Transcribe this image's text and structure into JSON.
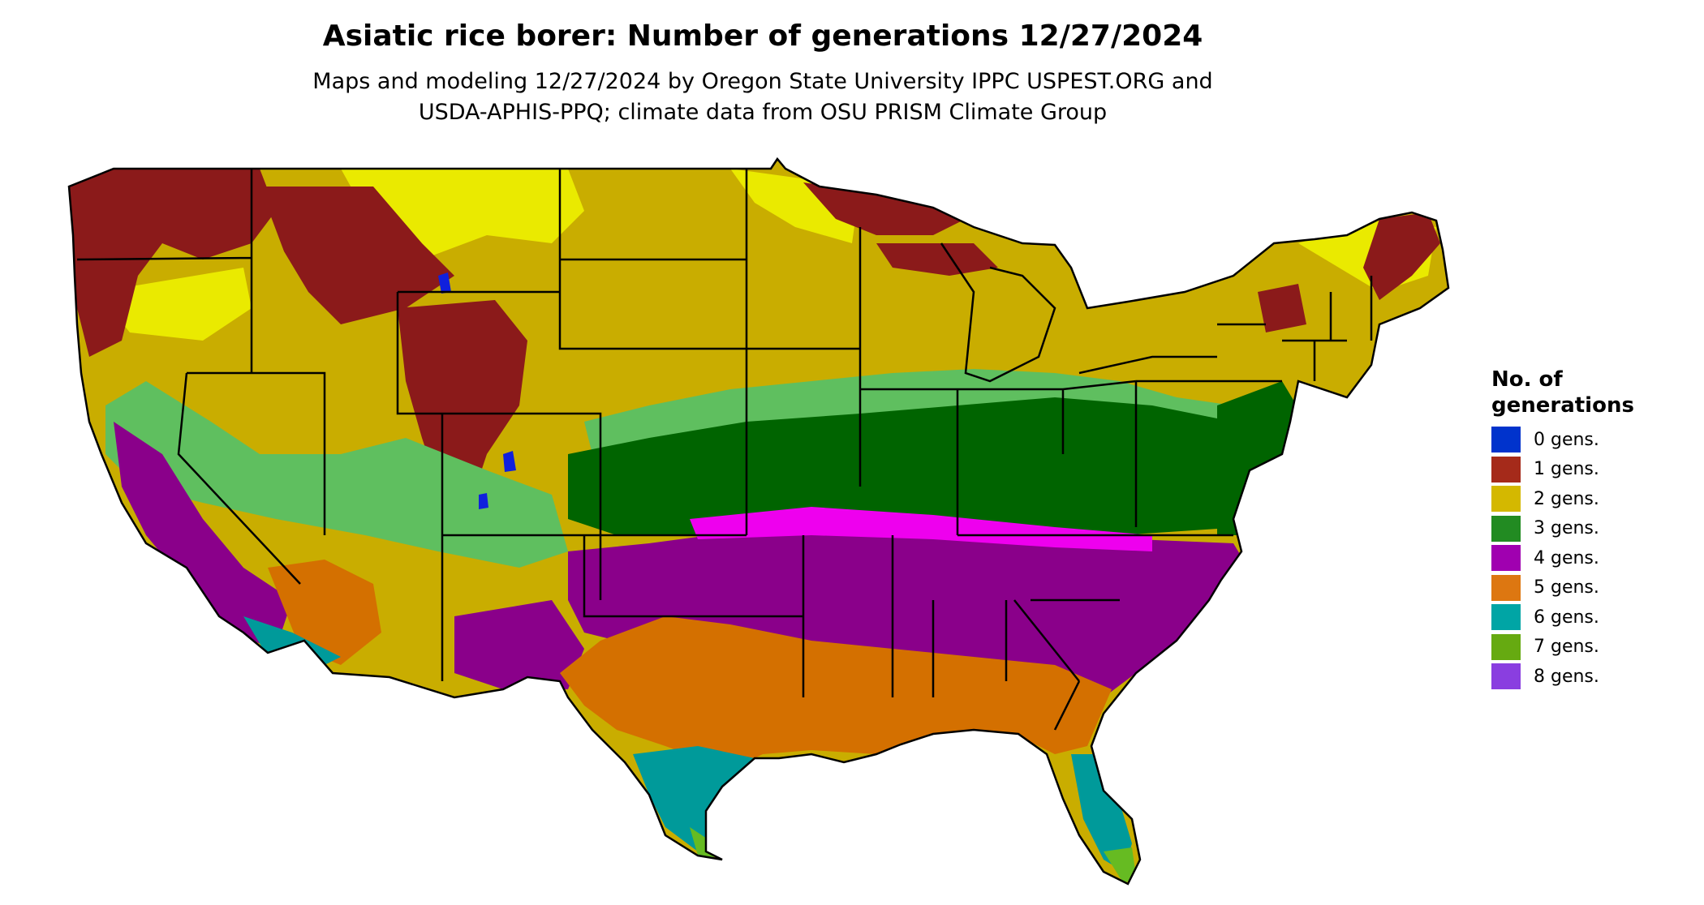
{
  "title": "Asiatic rice borer: Number of generations 12/27/2024",
  "subtitle": [
    "Maps and modeling 12/27/2024 by Oregon State University IPPC USPEST.ORG and",
    "USDA-APHIS-PPQ; climate data from OSU PRISM Climate Group"
  ],
  "legend": {
    "title": [
      "No. of",
      "generations"
    ],
    "items": [
      {
        "label": "0 gens.",
        "color": "#0033cc"
      },
      {
        "label": "1 gens.",
        "color": "#a52a1a"
      },
      {
        "label": "2 gens.",
        "color": "#d4b800"
      },
      {
        "label": "3 gens.",
        "color": "#228b22"
      },
      {
        "label": "4 gens.",
        "color": "#a000b0"
      },
      {
        "label": "5 gens.",
        "color": "#dd7711"
      },
      {
        "label": "6 gens.",
        "color": "#00a5a5"
      },
      {
        "label": "7 gens.",
        "color": "#66aa11"
      },
      {
        "label": "8 gens.",
        "color": "#8a3ee0"
      }
    ]
  },
  "map_colors": {
    "zone_1_dark": "#8b1a1a",
    "zone_2_olive": "#c9ad00",
    "zone_2_yellow": "#eaea00",
    "zone_3_dark": "#006400",
    "zone_3_light": "#5fbf5f",
    "zone_4_purple": "#8a008a",
    "zone_4_magenta": "#ee00ee",
    "zone_5_orange": "#d47000",
    "zone_6_teal": "#009a9a",
    "zone_6_cyan": "#00e0e0",
    "zone_7_green": "#66bb22",
    "zone_0_blue": "#1020dd",
    "state_border": "#000000"
  }
}
